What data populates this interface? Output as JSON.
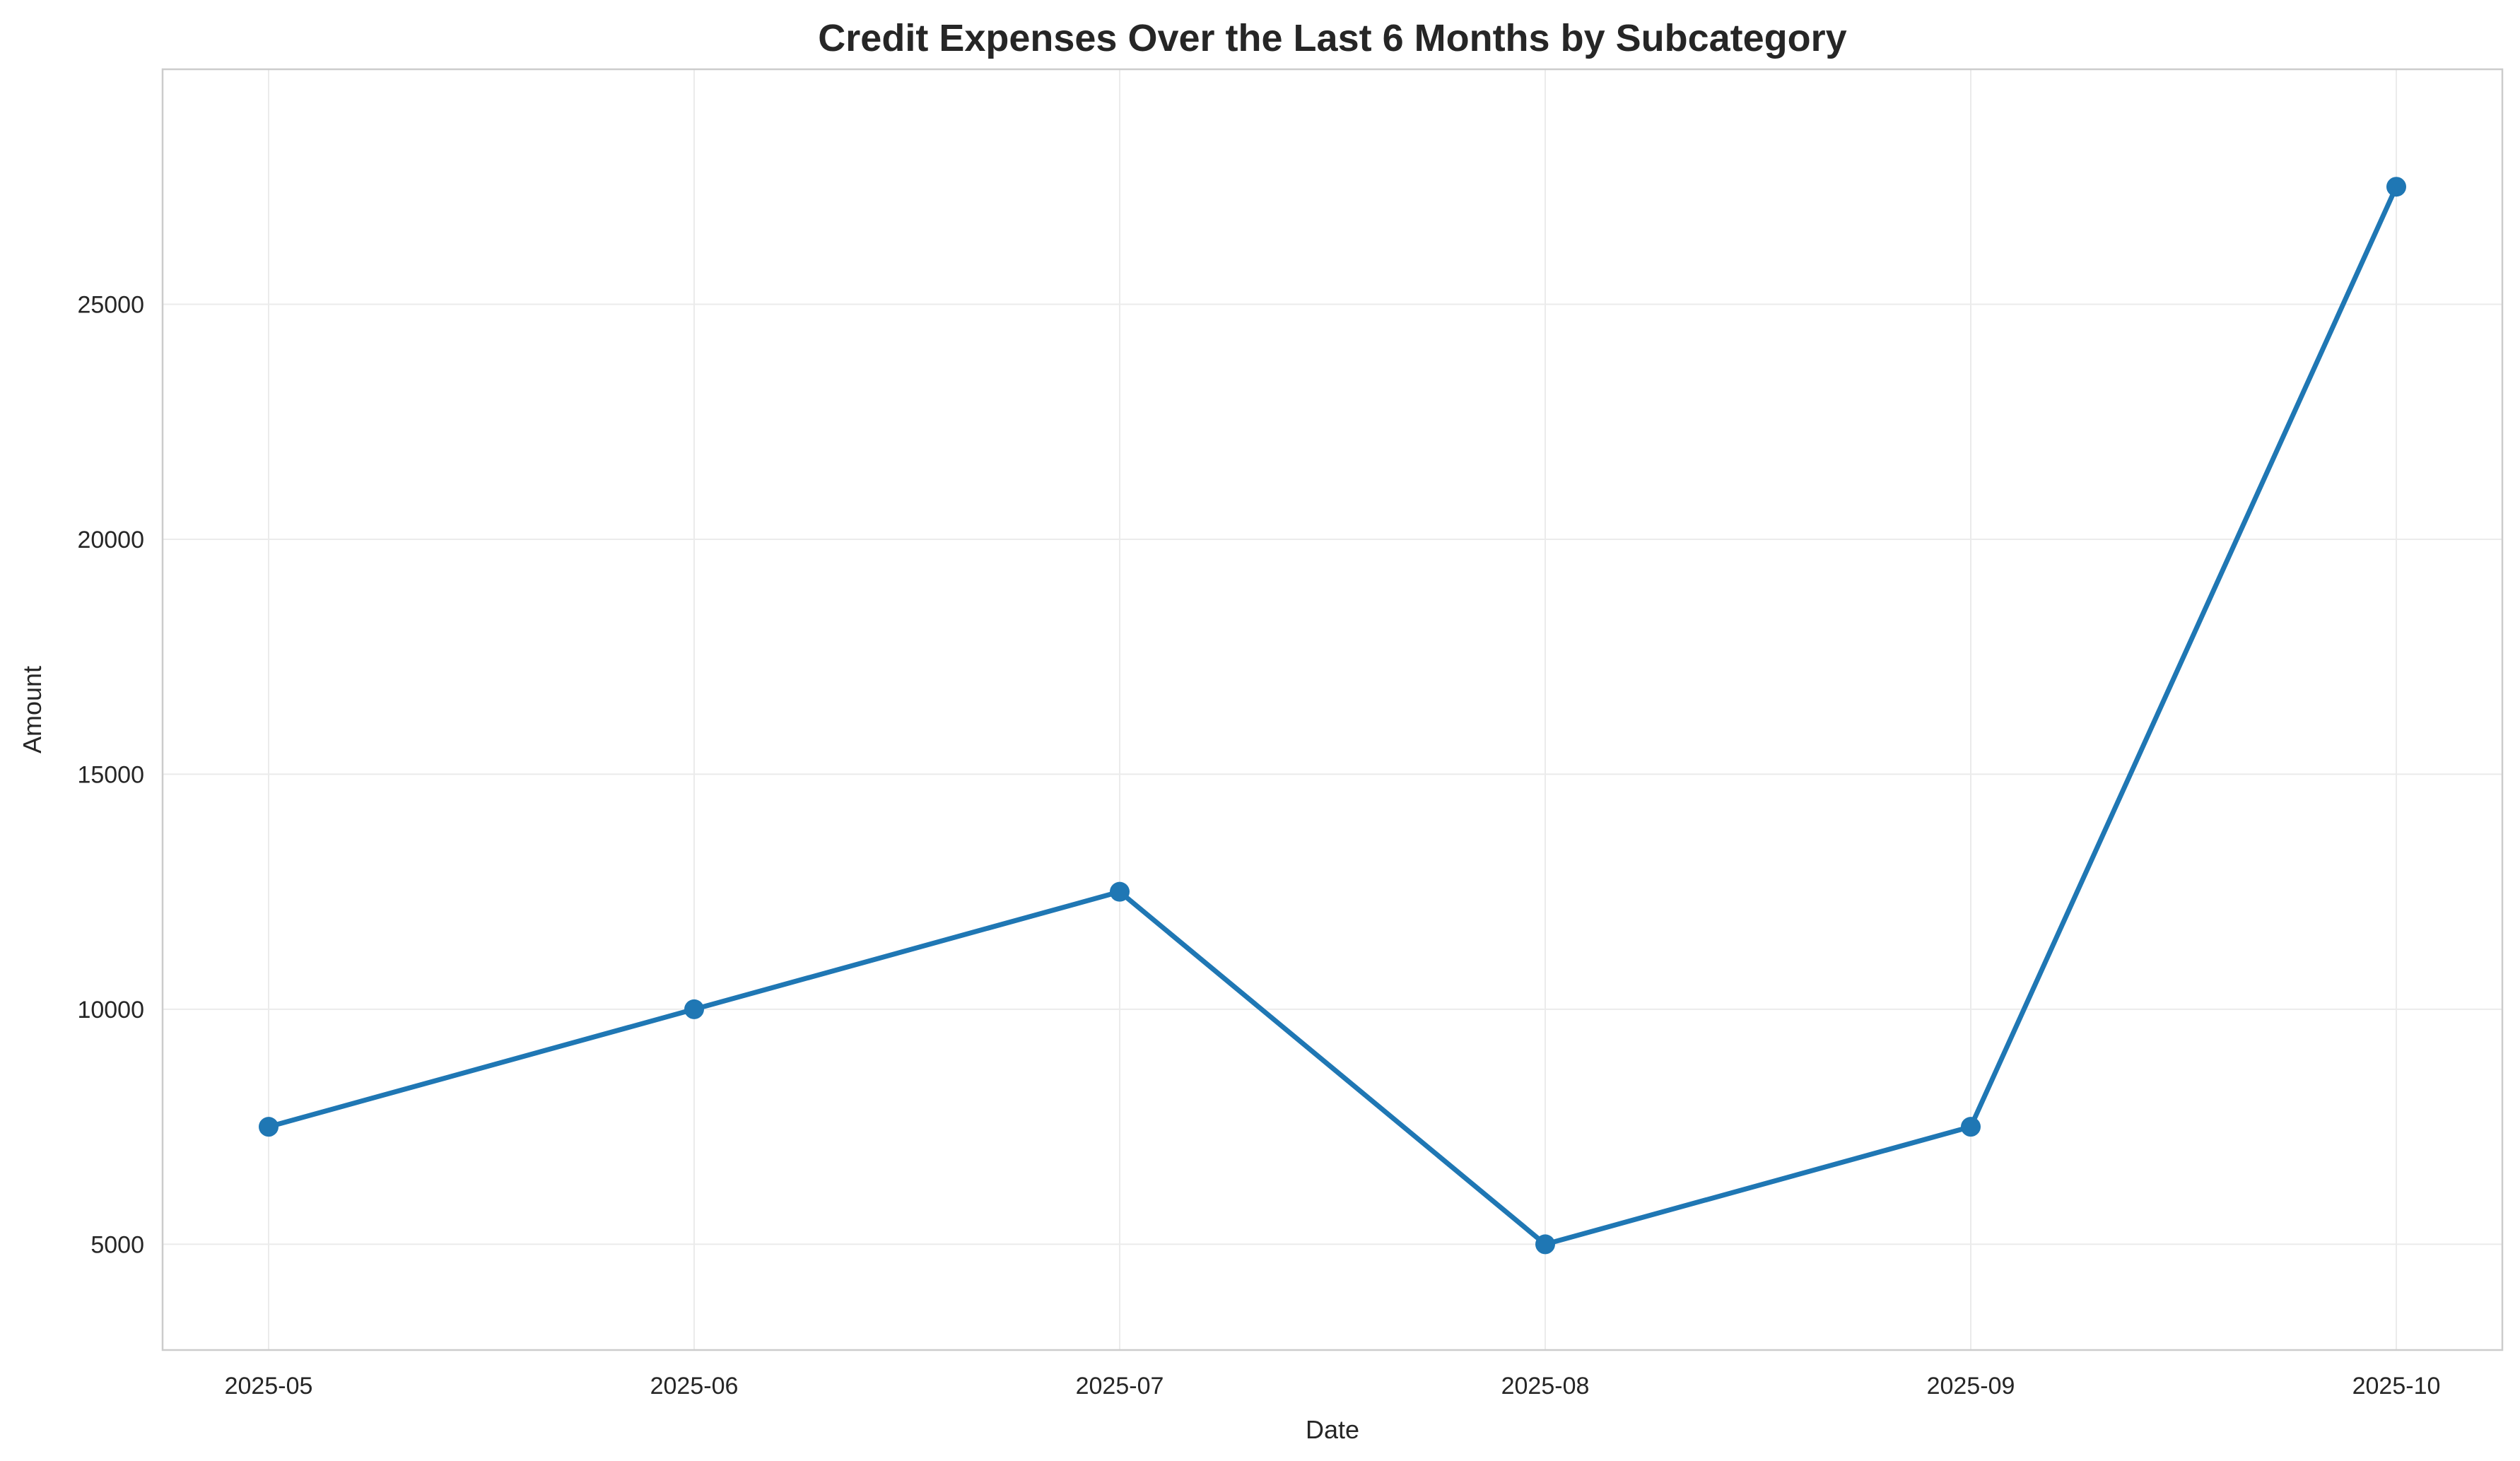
{
  "chart_data": {
    "type": "line",
    "title": "Credit Expenses Over the Last 6 Months by Subcategory",
    "xlabel": "Date",
    "ylabel": "Amount",
    "categories": [
      "2025-05",
      "2025-06",
      "2025-07",
      "2025-08",
      "2025-09",
      "2025-10"
    ],
    "series": [
      {
        "values": [
          7500,
          10000,
          12500,
          5000,
          7500,
          27500
        ],
        "color": "#1f77b4",
        "marker": "circle"
      }
    ],
    "ylim": [
      2750,
      30000
    ],
    "yticks": [
      5000,
      10000,
      15000,
      20000,
      25000
    ],
    "ytick_labels": [
      "5000",
      "10000",
      "15000",
      "20000",
      "25000"
    ],
    "grid": true,
    "legend": "none"
  }
}
